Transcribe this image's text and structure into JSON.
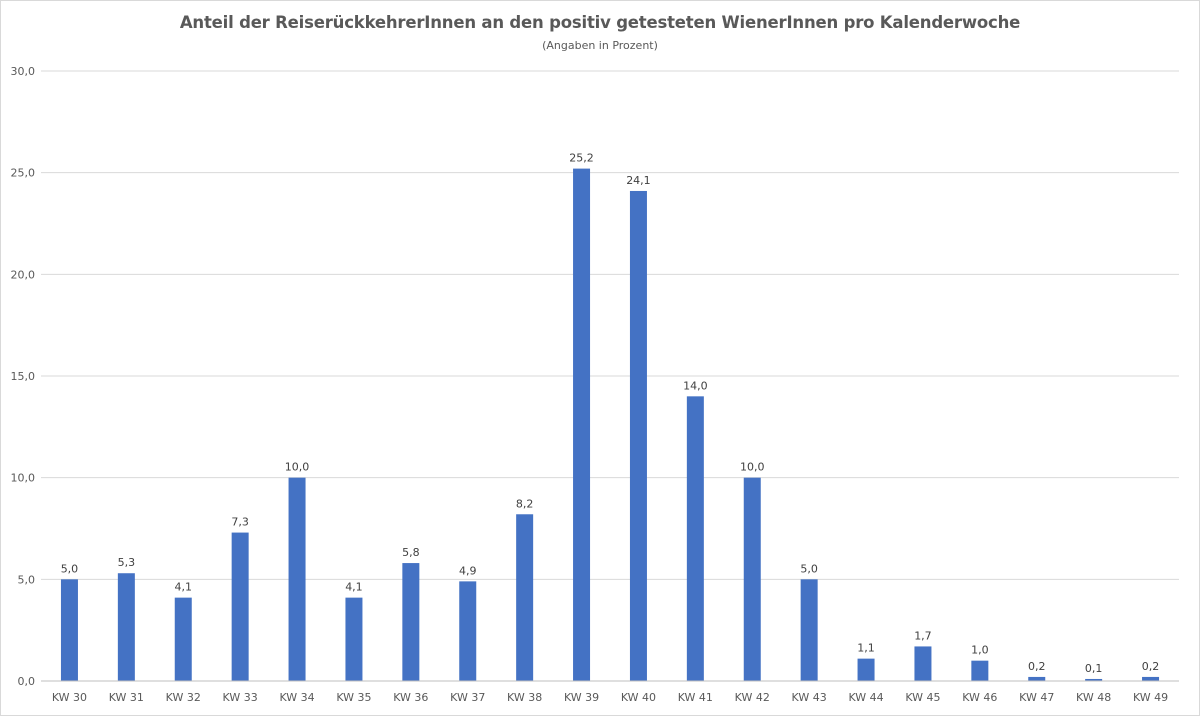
{
  "chart_data": {
    "type": "bar",
    "title": "Anteil der ReiserückkehrerInnen an den positiv getesteten WienerInnen pro Kalenderwoche",
    "subtitle": "(Angaben in Prozent)",
    "xlabel": "",
    "ylabel": "",
    "ylim": [
      0,
      30
    ],
    "yticks": [
      0,
      5,
      10,
      15,
      20,
      25,
      30
    ],
    "ytick_labels": [
      "0,0",
      "5,0",
      "10,0",
      "15,0",
      "20,0",
      "25,0",
      "30,0"
    ],
    "grid": true,
    "legend": "none",
    "categories": [
      "KW 30",
      "KW 31",
      "KW 32",
      "KW 33",
      "KW 34",
      "KW 35",
      "KW 36",
      "KW 37",
      "KW 38",
      "KW 39",
      "KW 40",
      "KW 41",
      "KW 42",
      "KW 43",
      "KW 44",
      "KW 45",
      "KW 46",
      "KW 47",
      "KW 48",
      "KW 49"
    ],
    "values": [
      5.0,
      5.3,
      4.1,
      7.3,
      10.0,
      4.1,
      5.8,
      4.9,
      8.2,
      25.2,
      24.1,
      14.0,
      10.0,
      5.0,
      1.1,
      1.7,
      1.0,
      0.2,
      0.1,
      0.2
    ],
    "data_labels": [
      "5,0",
      "5,3",
      "4,1",
      "7,3",
      "10,0",
      "4,1",
      "5,8",
      "4,9",
      "8,2",
      "25,2",
      "24,1",
      "14,0",
      "10,0",
      "5,0",
      "1,1",
      "1,7",
      "1,0",
      "0,2",
      "0,1",
      "0,2"
    ],
    "colors": {
      "bar": "#4472c4",
      "grid": "#d9d9d9",
      "text": "#595959"
    }
  }
}
